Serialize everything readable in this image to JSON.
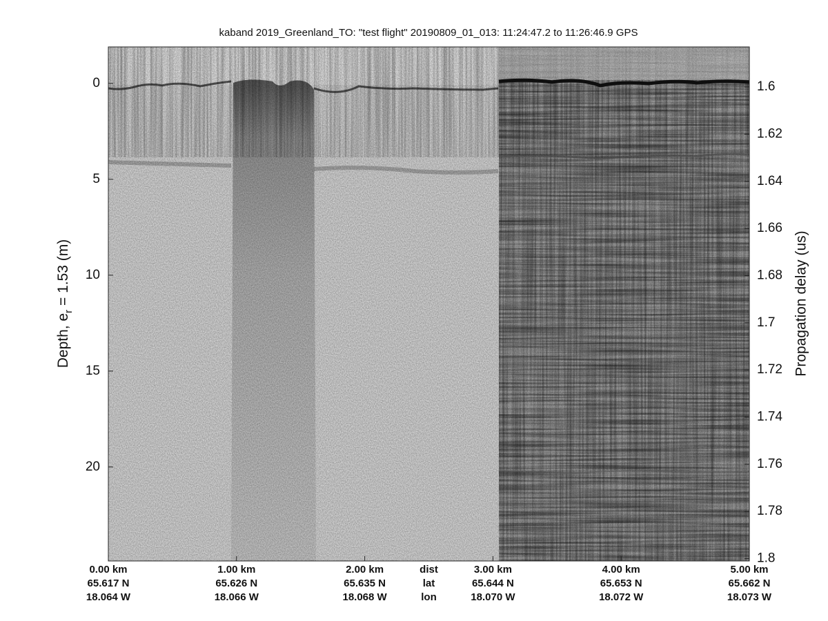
{
  "chart_data": {
    "type": "echogram",
    "title": "kaband 2019_Greenland_TO: \"test flight\"  20190809_01_013: 11:24:47.2 to 11:26:46.9 GPS",
    "ylabel_parts": [
      "Depth, e",
      "r",
      " = 1.53 (m)"
    ],
    "y2label": "Propagation delay (us)",
    "xlim": [
      0,
      5
    ],
    "xticks": [
      {
        "value": 0,
        "label": "0.00 km"
      },
      {
        "value": 1,
        "label": "1.00 km"
      },
      {
        "value": 2,
        "label": "2.00 km"
      },
      {
        "value": 3,
        "label": "3.00 km"
      },
      {
        "value": 4,
        "label": "4.00 km"
      },
      {
        "value": 5,
        "label": "5.00 km"
      }
    ],
    "lat_labels": [
      "65.617 N",
      "65.626 N",
      "65.635 N",
      "65.644 N",
      "65.653 N",
      "65.662 N"
    ],
    "lon_labels": [
      "18.064 W",
      "18.066 W",
      "18.068 W",
      "18.070 W",
      "18.072 W",
      "18.073 W"
    ],
    "x_row_labels": [
      "dist",
      "lat",
      "lon"
    ],
    "ylim": [
      -1.9,
      24.9
    ],
    "yticks": [
      0,
      5,
      10,
      15,
      20
    ],
    "y_reversed": true,
    "y2lim": [
      1.583,
      1.801
    ],
    "y2ticks": [
      1.6,
      1.62,
      1.64,
      1.66,
      1.68,
      1.7,
      1.72,
      1.74,
      1.76,
      1.78,
      1.8
    ],
    "colormap": "gray"
  }
}
